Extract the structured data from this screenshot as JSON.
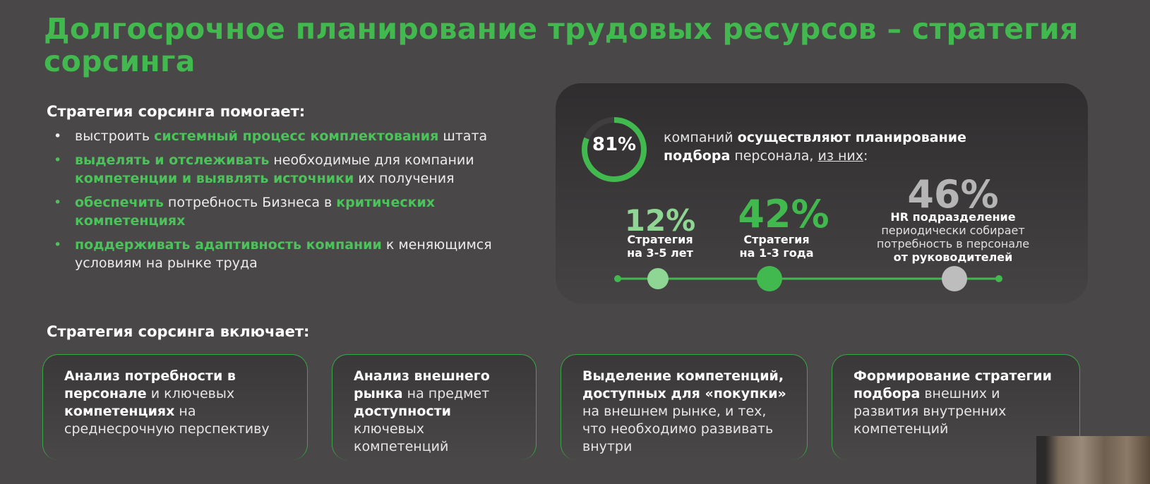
{
  "title": "Долгосрочное планирование трудовых ресурсов – стратегия сорсинга",
  "helps": {
    "heading": "Стратегия сорсинга помогает:",
    "items": [
      {
        "t1": "выстроить ",
        "g1": "системный процесс комплектования",
        "t2": " штата"
      },
      {
        "g1": "выделять и отслеживать",
        "t2": " необходимые для компании ",
        "g2": "компетенции и выявлять источники",
        "t3": " их получения"
      },
      {
        "g1": "обеспечить",
        "t2": " потребность Бизнеса в ",
        "g2": "критических компетенциях"
      },
      {
        "g1": "поддерживать адаптивность компании",
        "t2": " к меняющимся условиям на рынке труда"
      }
    ]
  },
  "stats": {
    "ring_value": "81%",
    "ring_fraction": 0.81,
    "ring_text_1": "компаний ",
    "ring_text_bold": "осуществляют планирование подбора",
    "ring_text_2": " персонала, ",
    "ring_text_link": "из них",
    "ring_text_3": ":",
    "s1_value": "12%",
    "s1_label_1": "Стратегия",
    "s1_label_2": "на 3-5 лет",
    "s2_value": "42%",
    "s2_label_1": "Стратегия",
    "s2_label_2": "на 1-3 года",
    "s3_value": "46%",
    "s3_label_1": "HR подразделение",
    "s3_label_2": "периодически собирает",
    "s3_label_3": "потребность в персонале",
    "s3_label_4": "от руководителей"
  },
  "includes": {
    "heading": "Стратегия сорсинга включает:",
    "cards": [
      {
        "b1": "Анализ потребности в персонале",
        "t1": " и ключевых ",
        "b2": "компетенциях",
        "t2": " на среднесрочную перспективу"
      },
      {
        "b1": "Анализ внешнего рынка",
        "t1": " на предмет ",
        "b2": "доступности",
        "t2": " ключевых компетенций"
      },
      {
        "b1": "Выделение компетенций, доступных для «покупки»",
        "t1": " на внешнем рынке, и тех, что необходимо развивать внутри"
      },
      {
        "b1": "Формирование стратегии подбора",
        "t1": " внешних и развития внутренних компетенций"
      }
    ]
  },
  "colors": {
    "background": "#4a4748",
    "accent_green": "#42b94e",
    "light_green": "#8fd694",
    "grey_dot": "#bdbdbd"
  }
}
